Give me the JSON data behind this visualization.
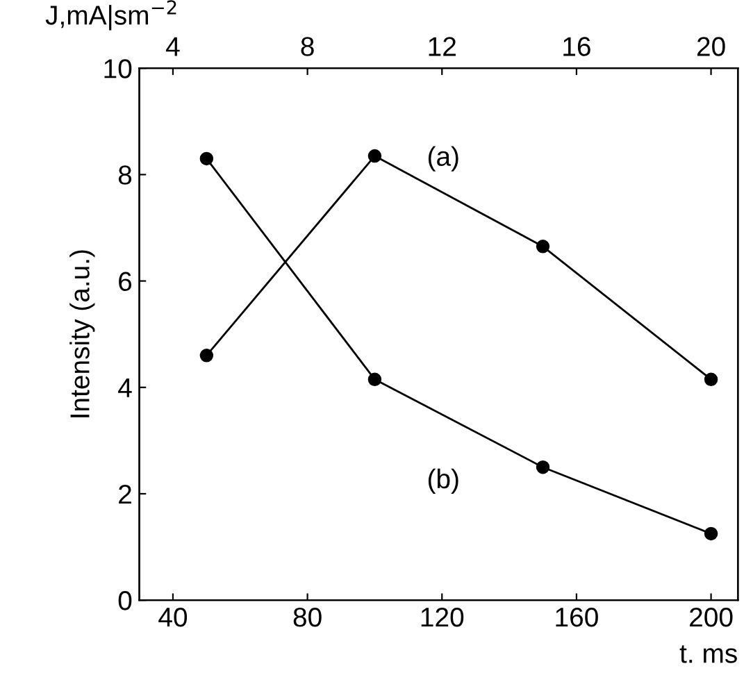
{
  "chart_data": {
    "type": "line",
    "xlabel": "t. ms",
    "ylabel": "Intensity (a.u.)",
    "x2label": "J,mA|sm$^{−2}$",
    "x": [
      50,
      100,
      150,
      200
    ],
    "series": [
      {
        "name": "(a)",
        "color": "#000000",
        "values": [
          4.6,
          8.35,
          6.65,
          4.15
        ]
      },
      {
        "name": "(b)",
        "color": "#000000",
        "values": [
          8.3,
          4.15,
          2.5,
          1.25
        ]
      }
    ],
    "xlim": [
      30,
      208
    ],
    "xticks": [
      40,
      80,
      120,
      160,
      200
    ],
    "x2lim": [
      3,
      20.8
    ],
    "x2ticks": [
      4,
      8,
      12,
      16,
      20
    ],
    "ylim": [
      0,
      10
    ],
    "yticks": [
      0,
      2,
      4,
      6,
      8,
      10
    ],
    "marker": "circle",
    "line_style": "solid",
    "grid": false,
    "legend": false
  }
}
